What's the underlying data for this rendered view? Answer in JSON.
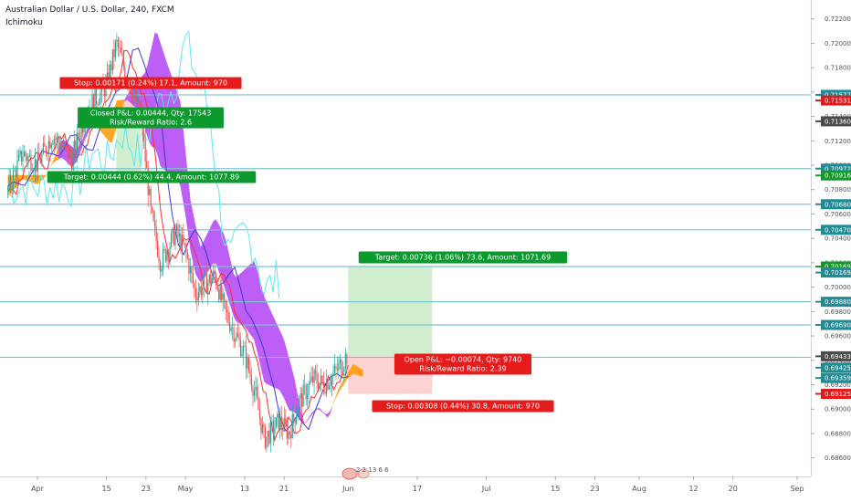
{
  "header": {
    "title": "Australian Dollar / U.S. Dollar, 240, FXCM",
    "indicator": "Ichimoku"
  },
  "colors": {
    "up_cloud": "#ff9800",
    "down_cloud": "#b142f5",
    "line_red": "#ff2e2e",
    "line_blue": "#3b3bd4",
    "line_cyan": "#5ee8ef",
    "hline": "#79c4cc",
    "profit": "#cfeecb",
    "loss": "#fdd0d0",
    "green_label": "#0c9a2f",
    "red_label": "#e51c1c",
    "axis_badge_teal": "#1e8c95",
    "axis_badge_green": "#119a2a",
    "axis_badge_red": "#e3191b",
    "axis_badge_gray": "#4b4b4b"
  },
  "chart_data": {
    "type": "line",
    "symbol": "AUDUSD",
    "timeframe": "240",
    "ylim": [
      0.6853,
      0.7231
    ],
    "y_ticks": [
      "0.72200",
      "0.72000",
      "0.71800",
      "0.71600",
      "0.71400",
      "0.71200",
      "0.71000",
      "0.70800",
      "0.70600",
      "0.70400",
      "0.70200",
      "0.70000",
      "0.69800",
      "0.69600",
      "0.69400",
      "0.69200",
      "0.69000",
      "0.68800",
      "0.68600"
    ],
    "x_ticks": [
      {
        "label": "Apr",
        "date": "2019-04-01"
      },
      {
        "label": "15",
        "date": "2019-04-15"
      },
      {
        "label": "23",
        "date": "2019-04-23"
      },
      {
        "label": "May",
        "date": "2019-05-01"
      },
      {
        "label": "13",
        "date": "2019-05-13"
      },
      {
        "label": "21",
        "date": "2019-05-21"
      },
      {
        "label": "Jun",
        "date": "2019-06-03"
      },
      {
        "label": "17",
        "date": "2019-06-17"
      },
      {
        "label": "Jul",
        "date": "2019-07-01"
      },
      {
        "label": "15",
        "date": "2019-07-15"
      },
      {
        "label": "23",
        "date": "2019-07-23"
      },
      {
        "label": "Aug",
        "date": "2019-08-01"
      },
      {
        "label": "12",
        "date": "2019-08-12"
      },
      {
        "label": "20",
        "date": "2019-08-20"
      },
      {
        "label": "Sep",
        "date": "2019-09-02"
      }
    ],
    "price_series": [
      {
        "date": "2019-03-26",
        "value": 0.708
      },
      {
        "date": "2019-03-29",
        "value": 0.711
      },
      {
        "date": "2019-04-01",
        "value": 0.71
      },
      {
        "date": "2019-04-04",
        "value": 0.7125
      },
      {
        "date": "2019-04-08",
        "value": 0.7105
      },
      {
        "date": "2019-04-11",
        "value": 0.7145
      },
      {
        "date": "2019-04-15",
        "value": 0.7165
      },
      {
        "date": "2019-04-17",
        "value": 0.72
      },
      {
        "date": "2019-04-19",
        "value": 0.7175
      },
      {
        "date": "2019-04-22",
        "value": 0.714
      },
      {
        "date": "2019-04-24",
        "value": 0.706
      },
      {
        "date": "2019-04-26",
        "value": 0.702
      },
      {
        "date": "2019-04-29",
        "value": 0.7045
      },
      {
        "date": "2019-05-01",
        "value": 0.703
      },
      {
        "date": "2019-05-03",
        "value": 0.6995
      },
      {
        "date": "2019-05-07",
        "value": 0.701
      },
      {
        "date": "2019-05-09",
        "value": 0.698
      },
      {
        "date": "2019-05-13",
        "value": 0.6945
      },
      {
        "date": "2019-05-15",
        "value": 0.6915
      },
      {
        "date": "2019-05-17",
        "value": 0.6875
      },
      {
        "date": "2019-05-20",
        "value": 0.689
      },
      {
        "date": "2019-05-22",
        "value": 0.688
      },
      {
        "date": "2019-05-24",
        "value": 0.6905
      },
      {
        "date": "2019-05-27",
        "value": 0.6925
      },
      {
        "date": "2019-05-29",
        "value": 0.692
      },
      {
        "date": "2019-05-31",
        "value": 0.6928
      },
      {
        "date": "2019-06-03",
        "value": 0.6945
      }
    ],
    "horizontal_levels": [
      0.71577,
      0.70972,
      0.7068,
      0.7047,
      0.70169,
      0.6988,
      0.6969,
      0.69425
    ],
    "axis_badges": [
      {
        "label": "0.71577",
        "value": 0.71577,
        "color": "teal"
      },
      {
        "label": "0.71531",
        "value": 0.71531,
        "color": "red"
      },
      {
        "label": "0.71360",
        "value": 0.7136,
        "color": "gray"
      },
      {
        "label": "0.70972",
        "value": 0.70972,
        "color": "teal"
      },
      {
        "label": "0.70916",
        "value": 0.70916,
        "color": "green"
      },
      {
        "label": "0.70680",
        "value": 0.7068,
        "color": "teal"
      },
      {
        "label": "0.70470",
        "value": 0.7047,
        "color": "teal"
      },
      {
        "label": "0.70169",
        "value": 0.70169,
        "color": "green"
      },
      {
        "label": "0.70169",
        "value": 0.7012,
        "color": "teal"
      },
      {
        "label": "0.69880",
        "value": 0.6988,
        "color": "teal"
      },
      {
        "label": "0.69690",
        "value": 0.6969,
        "color": "teal"
      },
      {
        "label": "0.69433",
        "value": 0.69433,
        "color": "gray"
      },
      {
        "label": "0.69425",
        "value": 0.6934,
        "color": "teal"
      },
      {
        "label": "0.69359",
        "value": 0.69255,
        "color": "teal"
      },
      {
        "label": "0.69125",
        "value": 0.69125,
        "color": "red"
      }
    ],
    "positions": [
      {
        "name": "first-trade",
        "start": "2019-04-17",
        "end": "2019-04-22",
        "entry": 0.7136,
        "target": 0.70916,
        "stop": 0.71531,
        "target_label": "Target: 0.00444 (0.62%) 44.4, Amount: 1077.89",
        "stop_label": "Stop: 0.00171 (0.24%) 17.1, Amount: 970",
        "center_lines": [
          "Closed P&L: 0.00444, Qty: 17543",
          "Risk/Reward Ratio: 2.6"
        ]
      },
      {
        "name": "current-trade",
        "start": "2019-06-03",
        "end": "2019-06-20",
        "entry": 0.69433,
        "target": 0.70169,
        "stop": 0.69125,
        "target_label": "Target: 0.00736 (1.06%) 73.6, Amount: 1071.69",
        "stop_label": "Stop: 0.00308 (0.44%) 30.8, Amount: 970",
        "center_lines": [
          "Open P&L: −0.00074, Qty: 9740",
          "Risk/Reward Ratio: 2.39"
        ]
      }
    ],
    "events_marker": "2 2 13 6 6"
  }
}
